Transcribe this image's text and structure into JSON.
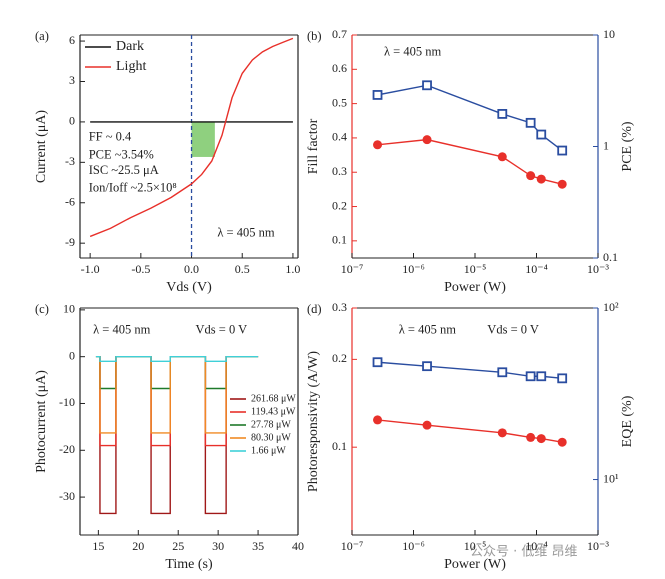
{
  "chart_data": [
    {
      "type": "line",
      "panel_label": "(a)",
      "xlabel": "Vds (V)",
      "ylabel": "Current (μA)",
      "xlim": [
        -1.1,
        1.05
      ],
      "xticks": [
        {
          "value": -1.0,
          "label": "-1.0"
        },
        {
          "value": -0.5,
          "label": "-0.5"
        },
        {
          "value": 0,
          "label": "0.0"
        },
        {
          "value": 0.5,
          "label": "0.5"
        },
        {
          "value": 1.0,
          "label": "1.0"
        }
      ],
      "ylim": [
        -10.1,
        6.45
      ],
      "yticks": [
        -9,
        -6,
        -3,
        0,
        3,
        6
      ],
      "legend": "upper left",
      "vline": {
        "x": 0,
        "color": "#2a4da0"
      },
      "highlight": {
        "x": [
          0,
          0.23
        ],
        "y": [
          -2.6,
          0
        ],
        "color": "#8fd07f"
      },
      "annotations": [
        "FF ~ 0.4",
        "PCE ~3.54%",
        "ISC ~25.5 μA",
        "Ion/Ioff ~2.5×10⁸",
        "λ = 405 nm"
      ],
      "series": [
        {
          "name": "Dark",
          "color": "#111111",
          "x": [
            -1,
            1
          ],
          "values": [
            0,
            0
          ]
        },
        {
          "name": "Light",
          "color": "#e8302a",
          "x": [
            -1,
            -0.8,
            -0.6,
            -0.4,
            -0.2,
            0,
            0.1,
            0.2,
            0.3,
            0.4,
            0.5,
            0.6,
            0.7,
            0.8,
            0.9,
            1.0
          ],
          "values": [
            -8.5,
            -7.9,
            -7.1,
            -6.4,
            -5.6,
            -4.6,
            -3.9,
            -2.9,
            -1.0,
            1.8,
            3.6,
            4.6,
            5.2,
            5.6,
            5.9,
            6.2
          ]
        }
      ]
    },
    {
      "type": "line",
      "panel_label": "(b)",
      "xlabel": "Power (W)",
      "ylabel": "Fill factor",
      "y2label": "PCE (%)",
      "xscale": "log",
      "xlim": [
        1e-07,
        0.001
      ],
      "xticks": [
        {
          "value": 1e-07,
          "label": "10⁻⁷"
        },
        {
          "value": 1e-06,
          "label": "10⁻⁶"
        },
        {
          "value": 1e-05,
          "label": "10⁻⁵"
        },
        {
          "value": 0.0001,
          "label": "10⁻⁴"
        },
        {
          "value": 0.001,
          "label": "10⁻³"
        }
      ],
      "ylim": [
        0.05,
        0.7
      ],
      "yticks": [
        0.1,
        0.2,
        0.3,
        0.4,
        0.5,
        0.6,
        0.7
      ],
      "y2scale": "log",
      "y2lim": [
        0.1,
        10
      ],
      "y2ticks": [
        0.1,
        1,
        10
      ],
      "yaxis_color": "#e8302a",
      "y2axis_color": "#2a4da0",
      "annotations": [
        "λ = 405 nm"
      ],
      "x": [
        2.6e-07,
        1.66e-06,
        2.778e-05,
        8.03e-05,
        0.00011943,
        0.00026168
      ],
      "series": [
        {
          "name": "Fill factor",
          "color": "#e8302a",
          "marker": "circle",
          "values": [
            0.38,
            0.395,
            0.345,
            0.29,
            0.28,
            0.265
          ]
        },
        {
          "name": "PCE",
          "color": "#2a4da0",
          "marker": "square",
          "axis": "y2",
          "values": [
            2.9,
            3.54,
            1.96,
            1.63,
            1.28,
            0.92
          ]
        }
      ]
    },
    {
      "type": "line",
      "panel_label": "(c)",
      "xlabel": "Time (s)",
      "ylabel": "Photocurrent (μA)",
      "xlim": [
        12.7,
        40
      ],
      "xticks": [
        15,
        20,
        25,
        30,
        35,
        40
      ],
      "ylim": [
        -38.1,
        10.4
      ],
      "yticks": [
        -30,
        -20,
        -10,
        0,
        10
      ],
      "legend": "center right",
      "annotations": [
        "λ = 405 nm",
        "Vds = 0 V"
      ],
      "x": [
        14.7,
        15.2,
        15.2,
        17.2,
        17.2,
        21.6,
        21.6,
        24,
        24,
        28.4,
        28.4,
        31,
        31,
        35
      ],
      "series": [
        {
          "name": "261.68 μW",
          "color": "#a01818",
          "values": [
            0,
            0,
            -33.5,
            -33.5,
            0,
            0,
            -33.5,
            -33.5,
            0,
            0,
            -33.5,
            -33.5,
            0,
            0
          ]
        },
        {
          "name": "119.43 μW",
          "color": "#e8302a",
          "values": [
            0,
            0,
            -19,
            -19,
            0,
            0,
            -19,
            -19,
            0,
            0,
            -19,
            -19,
            0,
            0
          ]
        },
        {
          "name": "27.78 μW",
          "color": "#1f7a2a",
          "values": [
            0,
            0,
            -6.8,
            -6.8,
            0,
            0,
            -6.8,
            -6.8,
            0,
            0,
            -6.8,
            -6.8,
            0,
            0
          ]
        },
        {
          "name": "80.30 μW",
          "color": "#f08a24",
          "values": [
            0,
            0,
            -16.3,
            -16.3,
            0,
            0,
            -16.3,
            -16.3,
            0,
            0,
            -16.3,
            -16.3,
            0,
            0
          ]
        },
        {
          "name": "1.66 μW",
          "color": "#3fd0d8",
          "values": [
            0,
            0,
            -1,
            -1,
            0,
            0,
            -1,
            -1,
            0,
            0,
            -1,
            -1,
            0,
            0
          ]
        }
      ]
    },
    {
      "type": "line",
      "panel_label": "(d)",
      "xlabel": "Power (W)",
      "ylabel": "Photoresponsivity (A/W)",
      "y2label": "EQE (%)",
      "xscale": "log",
      "xlim": [
        1e-07,
        0.001
      ],
      "xticks": [
        {
          "value": 1e-07,
          "label": "10⁻⁷"
        },
        {
          "value": 1e-06,
          "label": "10⁻⁶"
        },
        {
          "value": 1e-05,
          "label": "10⁻⁵"
        },
        {
          "value": 0.0001,
          "label": "10⁻⁴"
        },
        {
          "value": 0.001,
          "label": "10⁻³"
        }
      ],
      "yscale": "log",
      "ylim": [
        0.05,
        0.3
      ],
      "yticks": [
        0.1,
        0.2,
        0.3
      ],
      "y2scale": "log",
      "y2lim": [
        4.75,
        100
      ],
      "y2ticks": [
        {
          "value": 10,
          "label": "10¹"
        },
        {
          "value": 100,
          "label": "10²"
        }
      ],
      "yaxis_color": "#e8302a",
      "y2axis_color": "#2a4da0",
      "annotations": [
        "λ = 405 nm",
        "Vds = 0 V"
      ],
      "x": [
        2.6e-07,
        1.66e-06,
        2.778e-05,
        8.03e-05,
        0.00011943,
        0.00026168
      ],
      "series": [
        {
          "name": "Photoresponsivity",
          "color": "#e8302a",
          "marker": "circle",
          "values": [
            0.124,
            0.119,
            0.112,
            0.108,
            0.107,
            0.104
          ]
        },
        {
          "name": "EQE",
          "color": "#2a4da0",
          "marker": "square",
          "axis": "y2",
          "values": [
            48.3,
            45.8,
            42.2,
            40.0,
            40.0,
            38.9
          ]
        }
      ]
    }
  ],
  "watermark": "公众号 · 低维 昂维"
}
